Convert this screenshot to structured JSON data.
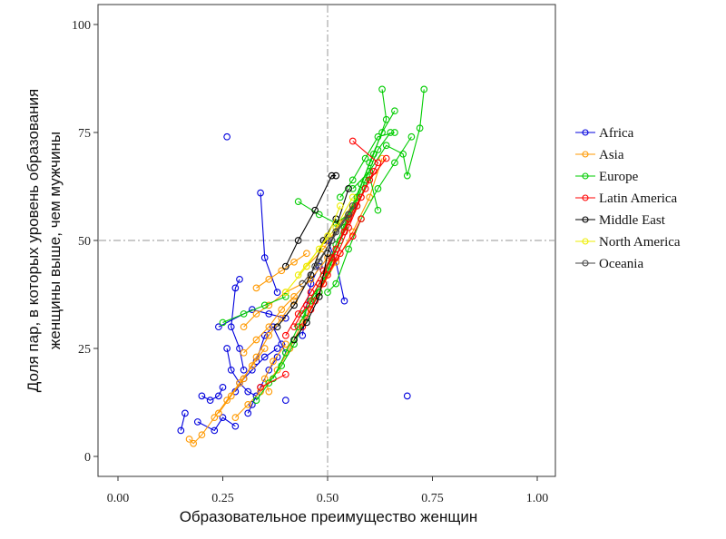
{
  "chart_data": {
    "type": "scatter",
    "xlabel": "Образовательное преимущество женщин",
    "ylabel_lines": [
      "Доля пар, в которых уровень образования",
      "женщины выше, чем мужчины"
    ],
    "xlim": [
      -0.05,
      1.05
    ],
    "ylim": [
      -5,
      104
    ],
    "xticks": [
      "0.00",
      "0.25",
      "0.50",
      "0.75",
      "1.00"
    ],
    "xtick_values": [
      0,
      0.25,
      0.5,
      0.75,
      1.0
    ],
    "yticks": [
      "0",
      "25",
      "50",
      "75",
      "100"
    ],
    "ytick_values": [
      0,
      25,
      50,
      75,
      100
    ],
    "reference_lines": {
      "x": 0.5,
      "y": 50
    },
    "legend_position": "right",
    "grid": false,
    "series": [
      {
        "name": "Africa",
        "color": "#0000dd",
        "trajectories": [
          [
            [
              0.15,
              6
            ],
            [
              0.16,
              10
            ]
          ],
          [
            [
              0.19,
              8
            ],
            [
              0.23,
              6
            ],
            [
              0.25,
              9
            ],
            [
              0.28,
              7
            ]
          ],
          [
            [
              0.2,
              14
            ],
            [
              0.22,
              13
            ],
            [
              0.24,
              14
            ],
            [
              0.25,
              16
            ]
          ],
          [
            [
              0.26,
              74
            ]
          ],
          [
            [
              0.34,
              61
            ],
            [
              0.35,
              46
            ],
            [
              0.38,
              38
            ]
          ],
          [
            [
              0.29,
              41
            ],
            [
              0.28,
              39
            ],
            [
              0.27,
              30
            ],
            [
              0.29,
              25
            ],
            [
              0.3,
              20
            ]
          ],
          [
            [
              0.24,
              30
            ],
            [
              0.32,
              34
            ],
            [
              0.36,
              33
            ],
            [
              0.4,
              32
            ]
          ],
          [
            [
              0.26,
              25
            ],
            [
              0.27,
              20
            ],
            [
              0.29,
              17
            ],
            [
              0.31,
              15
            ],
            [
              0.33,
              14
            ]
          ],
          [
            [
              0.28,
              15
            ],
            [
              0.3,
              18
            ],
            [
              0.32,
              20
            ],
            [
              0.35,
              23
            ],
            [
              0.38,
              25
            ]
          ],
          [
            [
              0.4,
              13
            ]
          ],
          [
            [
              0.69,
              14
            ]
          ],
          [
            [
              0.54,
              36
            ],
            [
              0.52,
              45
            ],
            [
              0.5,
              50
            ]
          ],
          [
            [
              0.44,
              28
            ],
            [
              0.45,
              35
            ],
            [
              0.46,
              40
            ],
            [
              0.48,
              44
            ]
          ],
          [
            [
              0.33,
              22
            ],
            [
              0.35,
              28
            ],
            [
              0.37,
              30
            ],
            [
              0.39,
              26
            ],
            [
              0.4,
              24
            ]
          ],
          [
            [
              0.31,
              10
            ],
            [
              0.32,
              12
            ],
            [
              0.34,
              16
            ],
            [
              0.36,
              20
            ],
            [
              0.38,
              23
            ]
          ]
        ]
      },
      {
        "name": "Asia",
        "color": "#ff9900",
        "trajectories": [
          [
            [
              0.17,
              4
            ],
            [
              0.18,
              3
            ],
            [
              0.2,
              5
            ],
            [
              0.23,
              9
            ],
            [
              0.26,
              13
            ],
            [
              0.29,
              17
            ],
            [
              0.32,
              21
            ],
            [
              0.35,
              25
            ]
          ],
          [
            [
              0.24,
              10
            ],
            [
              0.27,
              14
            ],
            [
              0.3,
              18
            ],
            [
              0.33,
              23
            ],
            [
              0.36,
              28
            ],
            [
              0.39,
              32
            ],
            [
              0.42,
              36
            ]
          ],
          [
            [
              0.33,
              39
            ],
            [
              0.36,
              41
            ],
            [
              0.39,
              43
            ],
            [
              0.42,
              45
            ],
            [
              0.45,
              47
            ]
          ],
          [
            [
              0.3,
              24
            ],
            [
              0.33,
              27
            ],
            [
              0.36,
              30
            ],
            [
              0.39,
              34
            ],
            [
              0.42,
              37
            ],
            [
              0.46,
              41
            ],
            [
              0.5,
              46
            ]
          ],
          [
            [
              0.36,
              15
            ],
            [
              0.35,
              18
            ],
            [
              0.37,
              22
            ],
            [
              0.4,
              26
            ]
          ],
          [
            [
              0.28,
              9
            ],
            [
              0.31,
              12
            ],
            [
              0.34,
              15
            ],
            [
              0.38,
              20
            ],
            [
              0.41,
              25
            ],
            [
              0.44,
              31
            ],
            [
              0.48,
              38
            ],
            [
              0.52,
              45
            ],
            [
              0.56,
              52
            ],
            [
              0.6,
              60
            ],
            [
              0.63,
              69
            ]
          ],
          [
            [
              0.3,
              30
            ],
            [
              0.33,
              33
            ],
            [
              0.36,
              35
            ],
            [
              0.4,
              38
            ],
            [
              0.44,
              40
            ]
          ],
          [
            [
              0.45,
              44
            ],
            [
              0.49,
              48
            ],
            [
              0.53,
              54
            ],
            [
              0.57,
              60
            ]
          ]
        ]
      },
      {
        "name": "Europe",
        "color": "#00cc00",
        "trajectories": [
          [
            [
              0.25,
              31
            ],
            [
              0.3,
              33
            ],
            [
              0.35,
              35
            ],
            [
              0.4,
              37
            ]
          ],
          [
            [
              0.33,
              13
            ],
            [
              0.36,
              17
            ],
            [
              0.39,
              21
            ],
            [
              0.42,
              26
            ],
            [
              0.45,
              32
            ],
            [
              0.48,
              38
            ],
            [
              0.51,
              45
            ],
            [
              0.54,
              53
            ],
            [
              0.57,
              60
            ],
            [
              0.6,
              68
            ],
            [
              0.63,
              75
            ],
            [
              0.66,
              80
            ]
          ],
          [
            [
              0.37,
              18
            ],
            [
              0.4,
              24
            ],
            [
              0.43,
              30
            ],
            [
              0.46,
              36
            ],
            [
              0.49,
              42
            ],
            [
              0.52,
              49
            ],
            [
              0.55,
              56
            ],
            [
              0.58,
              63
            ],
            [
              0.61,
              70
            ],
            [
              0.64,
              78
            ],
            [
              0.63,
              85
            ]
          ],
          [
            [
              0.43,
              59
            ],
            [
              0.48,
              56
            ],
            [
              0.52,
              54
            ],
            [
              0.55,
              56
            ]
          ],
          [
            [
              0.56,
              62
            ],
            [
              0.6,
              66
            ],
            [
              0.64,
              72
            ],
            [
              0.68,
              70
            ],
            [
              0.69,
              65
            ],
            [
              0.72,
              76
            ],
            [
              0.73,
              85
            ]
          ],
          [
            [
              0.48,
              40
            ],
            [
              0.51,
              46
            ],
            [
              0.54,
              52
            ],
            [
              0.57,
              58
            ],
            [
              0.6,
              65
            ],
            [
              0.62,
              57
            ]
          ],
          [
            [
              0.5,
              38
            ],
            [
              0.52,
              40
            ],
            [
              0.55,
              48
            ],
            [
              0.58,
              55
            ],
            [
              0.62,
              62
            ],
            [
              0.66,
              68
            ],
            [
              0.7,
              74
            ]
          ],
          [
            [
              0.44,
              33
            ],
            [
              0.47,
              37
            ],
            [
              0.5,
              43
            ],
            [
              0.53,
              50
            ],
            [
              0.56,
              57
            ],
            [
              0.59,
              64
            ],
            [
              0.62,
              71
            ],
            [
              0.65,
              75
            ]
          ],
          [
            [
              0.53,
              60
            ],
            [
              0.56,
              64
            ],
            [
              0.59,
              69
            ],
            [
              0.62,
              74
            ],
            [
              0.66,
              75
            ]
          ]
        ]
      },
      {
        "name": "Latin America",
        "color": "#ff0000",
        "trajectories": [
          [
            [
              0.4,
              19
            ],
            [
              0.34,
              16
            ]
          ],
          [
            [
              0.4,
              28
            ],
            [
              0.43,
              33
            ],
            [
              0.46,
              38
            ],
            [
              0.49,
              43
            ],
            [
              0.52,
              48
            ],
            [
              0.55,
              55
            ],
            [
              0.59,
              62
            ],
            [
              0.62,
              68
            ],
            [
              0.56,
              73
            ]
          ],
          [
            [
              0.42,
              30
            ],
            [
              0.45,
              35
            ],
            [
              0.48,
              40
            ],
            [
              0.51,
              46
            ],
            [
              0.54,
              52
            ],
            [
              0.57,
              58
            ],
            [
              0.6,
              64
            ],
            [
              0.64,
              69
            ]
          ],
          [
            [
              0.44,
              30
            ],
            [
              0.47,
              36
            ],
            [
              0.5,
              42
            ],
            [
              0.53,
              47
            ],
            [
              0.56,
              51
            ],
            [
              0.58,
              55
            ]
          ],
          [
            [
              0.46,
              34
            ],
            [
              0.49,
              40
            ],
            [
              0.52,
              46
            ],
            [
              0.55,
              53
            ],
            [
              0.58,
              60
            ],
            [
              0.61,
              66
            ]
          ]
        ]
      },
      {
        "name": "Middle East",
        "color": "#000000",
        "trajectories": [
          [
            [
              0.4,
              44
            ],
            [
              0.43,
              50
            ],
            [
              0.47,
              57
            ],
            [
              0.51,
              65
            ],
            [
              0.52,
              65
            ]
          ],
          [
            [
              0.38,
              30
            ],
            [
              0.42,
              35
            ],
            [
              0.46,
              42
            ],
            [
              0.49,
              50
            ],
            [
              0.52,
              55
            ]
          ],
          [
            [
              0.42,
              27
            ],
            [
              0.45,
              31
            ],
            [
              0.48,
              37
            ],
            [
              0.5,
              47
            ],
            [
              0.55,
              62
            ]
          ]
        ]
      },
      {
        "name": "North America",
        "color": "#eeee00",
        "trajectories": [
          [
            [
              0.4,
              38
            ],
            [
              0.45,
              44
            ],
            [
              0.5,
              51
            ],
            [
              0.53,
              58
            ]
          ],
          [
            [
              0.43,
              42
            ],
            [
              0.48,
              48
            ],
            [
              0.52,
              53
            ],
            [
              0.56,
              60
            ]
          ]
        ]
      },
      {
        "name": "Oceania",
        "color": "#444444",
        "trajectories": [
          [
            [
              0.44,
              40
            ],
            [
              0.48,
              45
            ],
            [
              0.52,
              52
            ],
            [
              0.56,
              58
            ]
          ],
          [
            [
              0.47,
              44
            ],
            [
              0.51,
              50
            ],
            [
              0.55,
              56
            ]
          ]
        ]
      }
    ]
  }
}
